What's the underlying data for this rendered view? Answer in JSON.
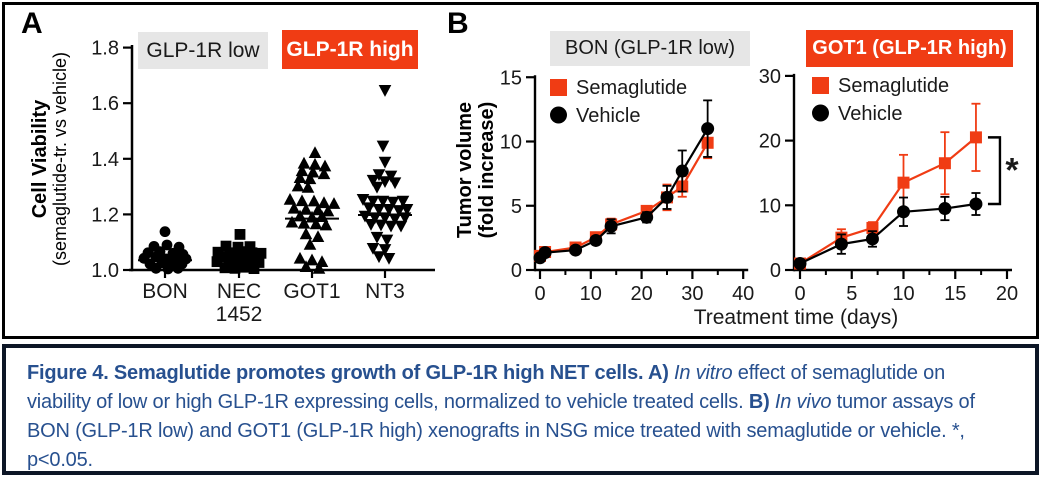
{
  "panelA": {
    "label": "A"
  },
  "panelB": {
    "label": "B",
    "sig_marker": "*"
  },
  "colors": {
    "accent_red": "#F03C14",
    "gray_label_bg": "#E6E6E6",
    "caption_text": "#27508F",
    "caption_border": "#0D1626",
    "axis_black": "#000000"
  },
  "chart_data": [
    {
      "type": "scatter",
      "title": "",
      "xlabel": "",
      "ylabel": "Cell Viability (semaglutide-tr. vs vehicle)",
      "ylabel_lines": [
        "Cell Viability",
        "(semaglutide-tr. vs vehicle)"
      ],
      "ylim": [
        1.0,
        1.8
      ],
      "yticks": [
        1.0,
        1.2,
        1.4,
        1.6,
        1.8
      ],
      "categories": [
        "BON",
        "NEC 1452",
        "GOT1",
        "NT3"
      ],
      "markers": [
        "circle",
        "square",
        "triangle-up",
        "triangle-down"
      ],
      "group_labels": [
        {
          "text": "GLP-1R low",
          "applies_to": [
            "BON",
            "NEC 1452"
          ],
          "style": "low"
        },
        {
          "text": "GLP-1R high",
          "applies_to": [
            "GOT1",
            "NT3"
          ],
          "style": "high"
        }
      ],
      "medians": [
        1.035,
        1.045,
        1.185,
        1.198
      ],
      "points": [
        [
          [
            0,
            1.138
          ],
          [
            -11,
            1.085
          ],
          [
            2,
            1.09
          ],
          [
            14,
            1.082
          ],
          [
            -17,
            1.062
          ],
          [
            -5,
            1.066
          ],
          [
            8,
            1.06
          ],
          [
            18,
            1.056
          ],
          [
            -21,
            1.042
          ],
          [
            -9,
            1.047
          ],
          [
            1,
            1.04
          ],
          [
            11,
            1.042
          ],
          [
            21,
            1.04
          ],
          [
            -15,
            1.022
          ],
          [
            -3,
            1.026
          ],
          [
            7,
            1.02
          ],
          [
            17,
            1.022
          ],
          [
            -9,
            1.006
          ],
          [
            3,
            1.004
          ],
          [
            13,
            1.006
          ]
        ],
        [
          [
            1,
            1.128
          ],
          [
            -13,
            1.086
          ],
          [
            -1,
            1.082
          ],
          [
            11,
            1.084
          ],
          [
            -21,
            1.064
          ],
          [
            -9,
            1.062
          ],
          [
            3,
            1.066
          ],
          [
            13,
            1.062
          ],
          [
            22,
            1.06
          ],
          [
            -16,
            1.047
          ],
          [
            -4,
            1.05
          ],
          [
            7,
            1.046
          ],
          [
            17,
            1.048
          ],
          [
            -22,
            1.03
          ],
          [
            -10,
            1.028
          ],
          [
            0,
            1.026
          ],
          [
            10,
            1.03
          ],
          [
            20,
            1.027
          ],
          [
            -14,
            1.008
          ],
          [
            -4,
            1.006
          ],
          [
            6,
            1.01
          ],
          [
            15,
            1.005
          ]
        ],
        [
          [
            3,
            1.42
          ],
          [
            -8,
            1.382
          ],
          [
            3,
            1.378
          ],
          [
            13,
            1.372
          ],
          [
            -10,
            1.355
          ],
          [
            1,
            1.35
          ],
          [
            12,
            1.344
          ],
          [
            -12,
            1.33
          ],
          [
            -2,
            1.326
          ],
          [
            -14,
            1.3
          ],
          [
            -4,
            1.295
          ],
          [
            -22,
            1.252
          ],
          [
            -10,
            1.247
          ],
          [
            2,
            1.246
          ],
          [
            12,
            1.24
          ],
          [
            22,
            1.237
          ],
          [
            -18,
            1.22
          ],
          [
            -6,
            1.216
          ],
          [
            6,
            1.214
          ],
          [
            16,
            1.21
          ],
          [
            -12,
            1.192
          ],
          [
            0,
            1.188
          ],
          [
            10,
            1.19
          ],
          [
            -20,
            1.17
          ],
          [
            -8,
            1.166
          ],
          [
            4,
            1.164
          ],
          [
            14,
            1.16
          ],
          [
            -6,
            1.128
          ],
          [
            6,
            1.118
          ],
          [
            -2,
            1.09
          ],
          [
            -12,
            1.04
          ],
          [
            0,
            1.034
          ],
          [
            10,
            1.028
          ],
          [
            -6,
            1.01
          ],
          [
            7,
            1.004
          ]
        ],
        [
          [
            0,
            1.648
          ],
          [
            -2,
            1.448
          ],
          [
            0,
            1.39
          ],
          [
            -6,
            1.345
          ],
          [
            6,
            1.34
          ],
          [
            -12,
            1.325
          ],
          [
            0,
            1.32
          ],
          [
            10,
            1.316
          ],
          [
            -8,
            1.3
          ],
          [
            -22,
            1.256
          ],
          [
            -12,
            1.25
          ],
          [
            -2,
            1.25
          ],
          [
            8,
            1.246
          ],
          [
            18,
            1.25
          ],
          [
            -16,
            1.226
          ],
          [
            -6,
            1.22
          ],
          [
            4,
            1.22
          ],
          [
            14,
            1.216
          ],
          [
            22,
            1.22
          ],
          [
            -20,
            1.196
          ],
          [
            -10,
            1.19
          ],
          [
            0,
            1.19
          ],
          [
            10,
            1.186
          ],
          [
            20,
            1.19
          ],
          [
            -14,
            1.166
          ],
          [
            -4,
            1.164
          ],
          [
            6,
            1.16
          ],
          [
            16,
            1.16
          ],
          [
            -8,
            1.12
          ],
          [
            2,
            1.11
          ],
          [
            -12,
            1.08
          ],
          [
            0,
            1.076
          ],
          [
            -6,
            1.05
          ],
          [
            4,
            1.044
          ]
        ]
      ]
    },
    {
      "type": "line",
      "title": "BON (GLP-1R low)",
      "xlabel": "Treatment time (days)",
      "ylabel": "Tumor volume (fold increase)",
      "ylabel_lines": [
        "Tumor volume",
        "(fold increase)"
      ],
      "xlim": [
        0,
        40
      ],
      "ylim": [
        0,
        15
      ],
      "xticks": [
        0,
        10,
        20,
        30,
        40
      ],
      "xticks_minor": [
        5,
        15,
        25,
        35
      ],
      "yticks": [
        0,
        5,
        10,
        15
      ],
      "x": [
        0,
        1,
        7,
        11,
        14,
        21,
        25,
        28,
        33
      ],
      "series": [
        {
          "name": "Semaglutide",
          "color": "#F03C14",
          "marker": "square",
          "values": [
            1.1,
            1.4,
            1.75,
            2.55,
            3.55,
            4.6,
            5.65,
            6.5,
            9.9
          ],
          "errors": [
            0.15,
            0.15,
            0.2,
            0.25,
            0.45,
            0.35,
            1.0,
            0.8,
            1.2
          ]
        },
        {
          "name": "Vehicle",
          "color": "#000000",
          "marker": "circle",
          "values": [
            0.95,
            1.35,
            1.55,
            2.3,
            3.4,
            4.1,
            5.65,
            7.7,
            11.0
          ],
          "errors": [
            0.15,
            0.15,
            0.2,
            0.3,
            0.55,
            0.4,
            0.9,
            1.6,
            2.2
          ]
        }
      ],
      "legend_position": "top-left"
    },
    {
      "type": "line",
      "title": "GOT1 (GLP-1R high)",
      "xlabel": "Treatment time (days)",
      "ylabel": "Tumor volume (fold increase)",
      "xlim": [
        0,
        20
      ],
      "ylim": [
        0,
        30
      ],
      "xticks": [
        0,
        5,
        10,
        15,
        20
      ],
      "xticks_minor": [
        2.5,
        7.5,
        12.5,
        17.5
      ],
      "yticks": [
        0,
        10,
        20,
        30
      ],
      "x": [
        0,
        4,
        7,
        10,
        14,
        17
      ],
      "series": [
        {
          "name": "Semaglutide",
          "color": "#F03C14",
          "marker": "square",
          "values": [
            1.0,
            5.0,
            6.5,
            13.5,
            16.5,
            20.5
          ],
          "errors": [
            0.4,
            1.3,
            0.9,
            4.3,
            4.8,
            5.2
          ]
        },
        {
          "name": "Vehicle",
          "color": "#000000",
          "marker": "circle",
          "values": [
            1.0,
            4.0,
            4.8,
            9.0,
            9.5,
            10.2
          ],
          "errors": [
            0.4,
            1.5,
            1.2,
            2.2,
            1.8,
            1.7
          ]
        }
      ],
      "legend_position": "top-left",
      "annotation": {
        "text": "*",
        "meaning": "p<0.05"
      }
    }
  ],
  "caption": {
    "segments": [
      {
        "text": "Figure 4. Semaglutide promotes growth of GLP-1R high NET cells. A) ",
        "bold": true,
        "italic": false
      },
      {
        "text": "In vitro",
        "bold": false,
        "italic": true
      },
      {
        "text": " effect of semaglutide on viability of low or high GLP-1R expressing cells, normalized to vehicle treated cells. ",
        "bold": false,
        "italic": false
      },
      {
        "text": "B) ",
        "bold": true,
        "italic": false
      },
      {
        "text": "In vivo",
        "bold": false,
        "italic": true
      },
      {
        "text": " tumor assays of BON (GLP-1R low) and GOT1 (GLP-1R high) xenografts in NSG mice treated with semaglutide or vehicle. *, p<0.05.",
        "bold": false,
        "italic": false
      }
    ]
  }
}
